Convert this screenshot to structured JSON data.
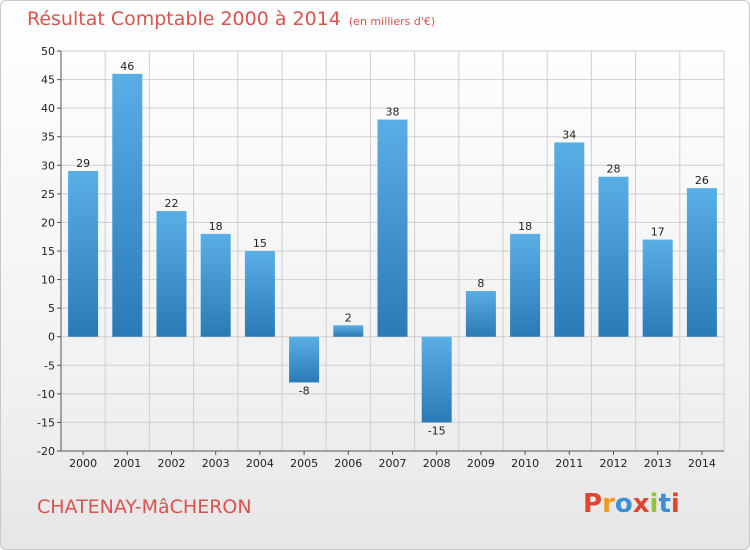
{
  "header": {
    "title": "Résultat Comptable 2000 à 2014",
    "subtitle": "(en milliers d'€)"
  },
  "footer": {
    "commune": "CHATENAY-MâCHERON",
    "brand": "Proxiti"
  },
  "colors": {
    "title": "#d9534f",
    "bar_light": "#5aaee6",
    "bar_dark": "#2a7ab6",
    "grid": "#cfcfcf",
    "brand_letters": [
      "#e2452f",
      "#f29a1f",
      "#3a8fd8",
      "#e2452f",
      "#8cc63e",
      "#3a8fd8",
      "#e2452f"
    ]
  },
  "chart_data": {
    "type": "bar",
    "title": "Résultat Comptable 2000 à 2014",
    "subtitle": "(en milliers d'€)",
    "categories": [
      "2000",
      "2001",
      "2002",
      "2003",
      "2004",
      "2005",
      "2006",
      "2007",
      "2008",
      "2009",
      "2010",
      "2011",
      "2012",
      "2013",
      "2014"
    ],
    "values": [
      29,
      46,
      22,
      18,
      15,
      -8,
      2,
      38,
      -15,
      8,
      18,
      34,
      28,
      17,
      26
    ],
    "ylim": [
      -20,
      50
    ],
    "yticks": [
      -20,
      -15,
      -10,
      -5,
      0,
      5,
      10,
      15,
      20,
      25,
      30,
      35,
      40,
      45,
      50
    ],
    "grid": true,
    "legend": "none"
  }
}
